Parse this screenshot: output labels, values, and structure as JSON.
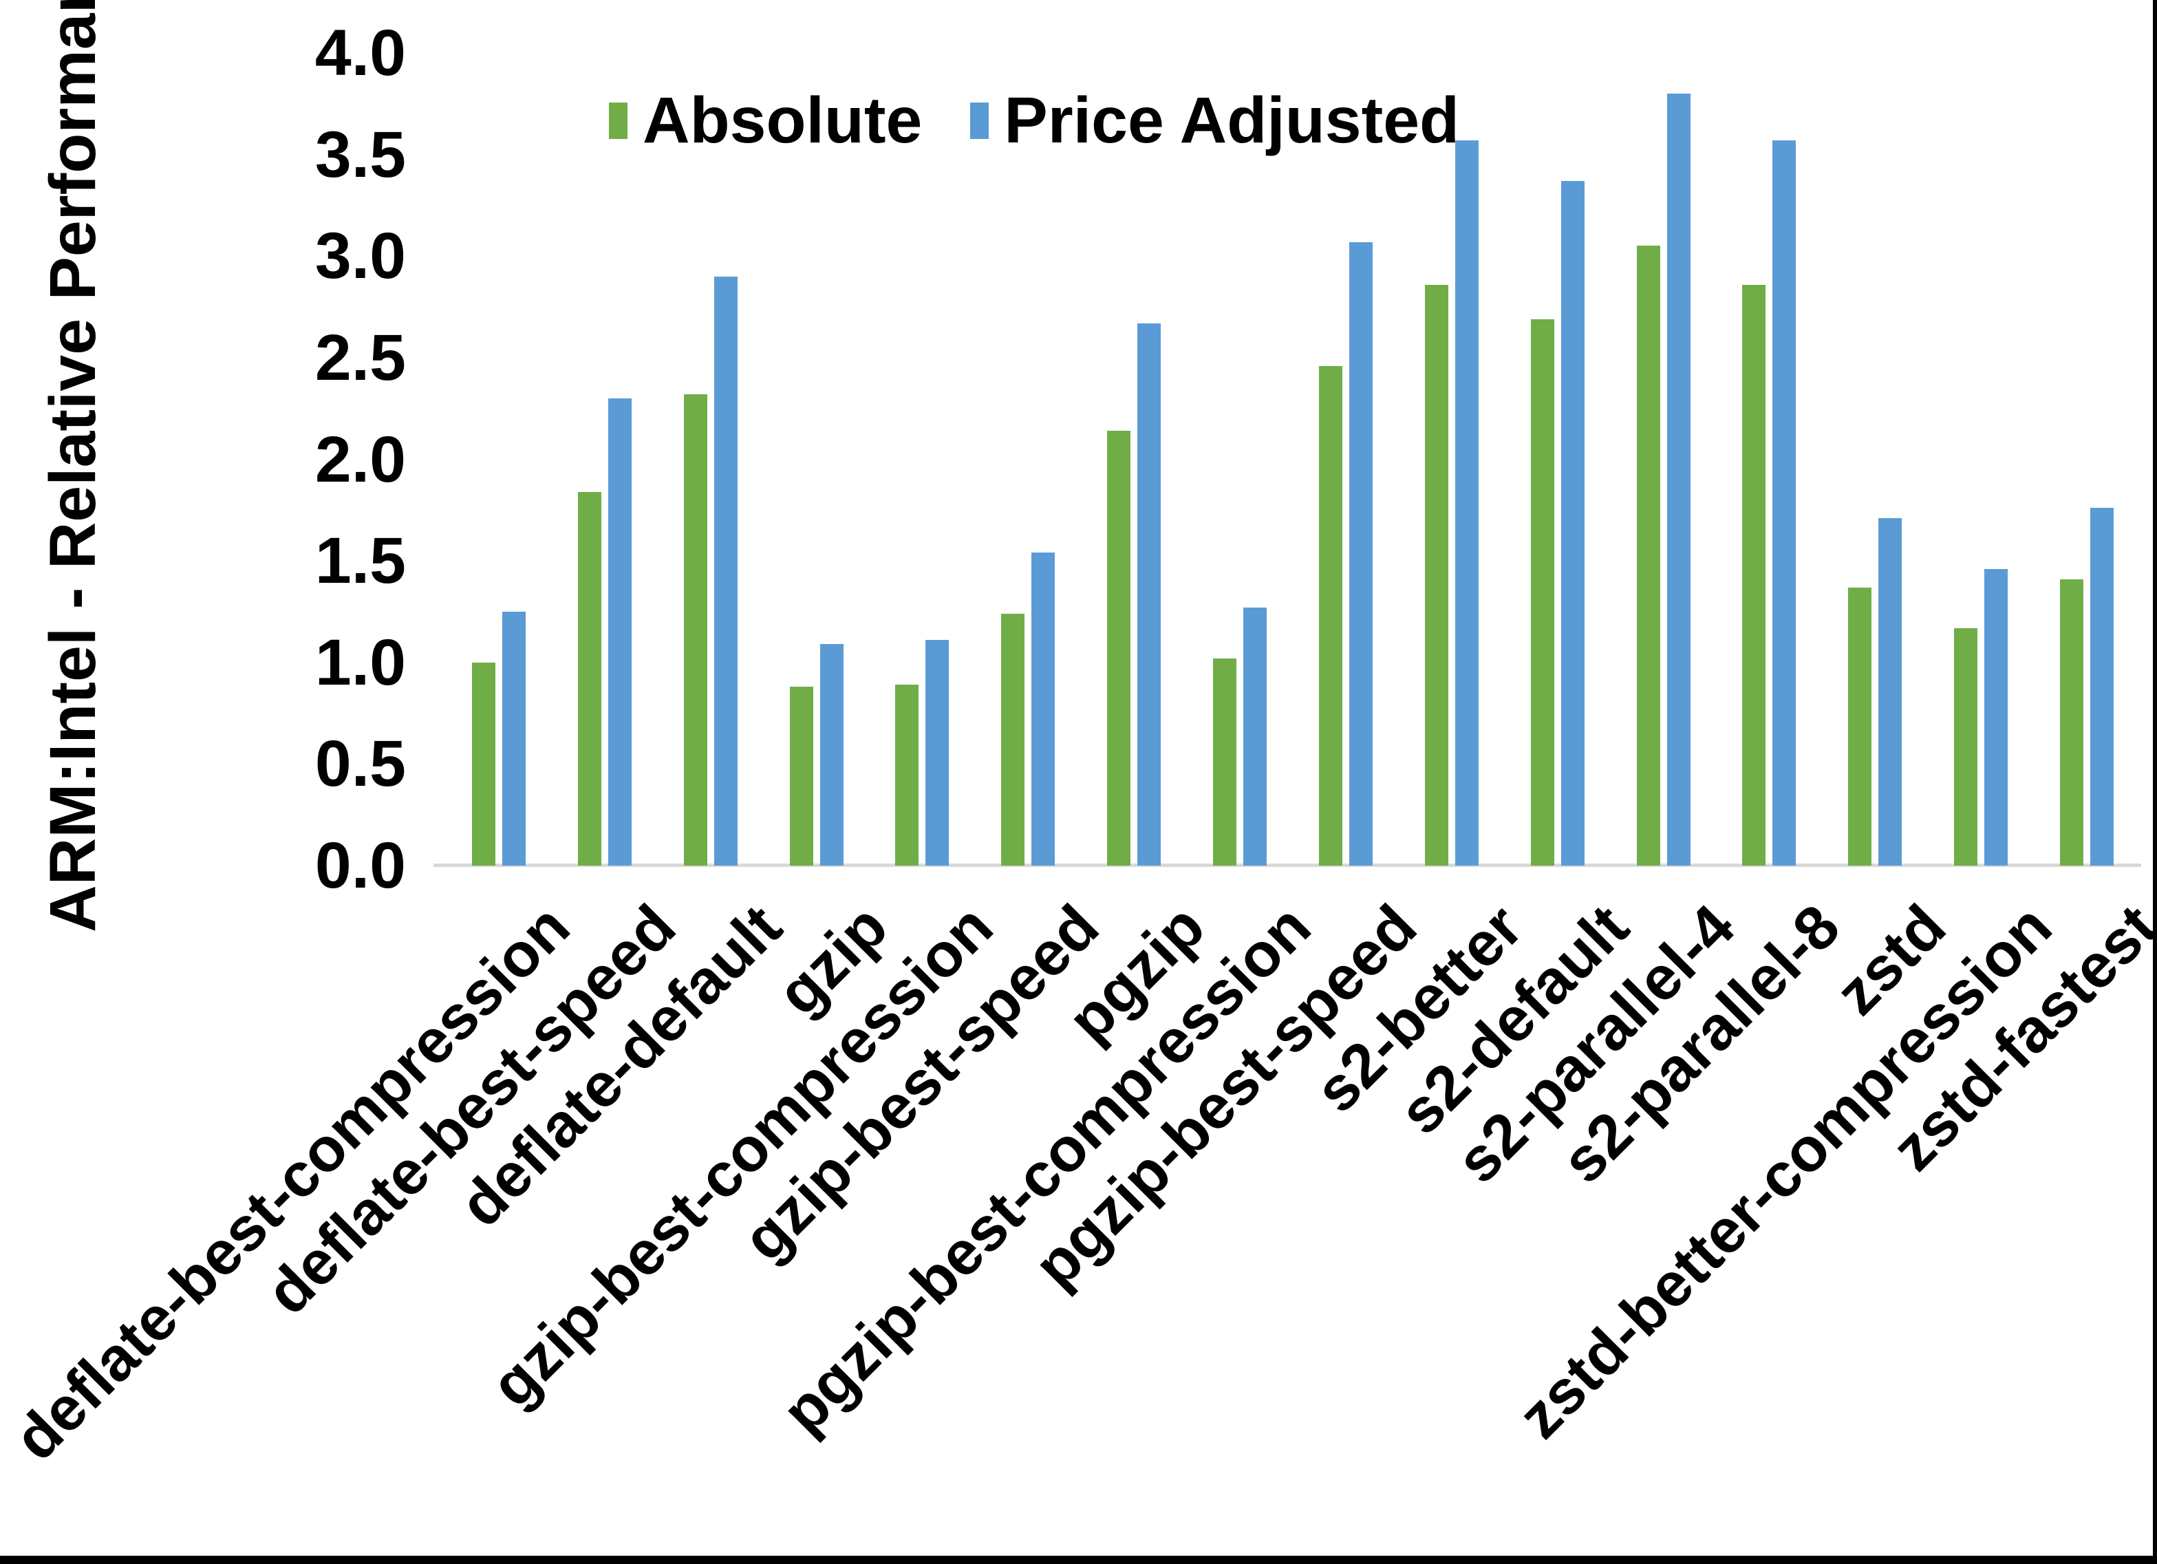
{
  "chart_data": {
    "type": "bar",
    "title": "",
    "xlabel": "",
    "ylabel": "ARM:Intel - Relative Performance",
    "ylim": [
      0.0,
      4.0
    ],
    "ytick_step": 0.5,
    "yticks": [
      "0.0",
      "0.5",
      "1.0",
      "1.5",
      "2.0",
      "2.5",
      "3.0",
      "3.5",
      "4.0"
    ],
    "grid": "off",
    "legend_position": "top-inside",
    "categories": [
      "deflate-best-compression",
      "deflate-best-speed",
      "deflate-default",
      "gzip",
      "gzip-best-compression",
      "gzip-best-speed",
      "pgzip",
      "pgzip-best-compression",
      "pgzip-best-speed",
      "s2-better",
      "s2-default",
      "s2-parallel-4",
      "s2-parallel-8",
      "zstd",
      "zstd-better-compression",
      "zstd-fastest"
    ],
    "series": [
      {
        "name": "Absolute",
        "color": "#70AD47",
        "values": [
          1.0,
          1.84,
          2.32,
          0.88,
          0.89,
          1.24,
          2.14,
          1.02,
          2.46,
          2.86,
          2.69,
          3.05,
          2.86,
          1.37,
          1.17,
          1.41
        ]
      },
      {
        "name": "Price Adjusted",
        "color": "#5B9BD5",
        "values": [
          1.25,
          2.3,
          2.9,
          1.09,
          1.11,
          1.54,
          2.67,
          1.27,
          3.07,
          3.57,
          3.37,
          3.8,
          3.57,
          1.71,
          1.46,
          1.76
        ]
      }
    ],
    "colors": {
      "axis_line": "#d9d9d9",
      "text": "#000000",
      "background": "#ffffff",
      "frame": "#000000"
    }
  }
}
